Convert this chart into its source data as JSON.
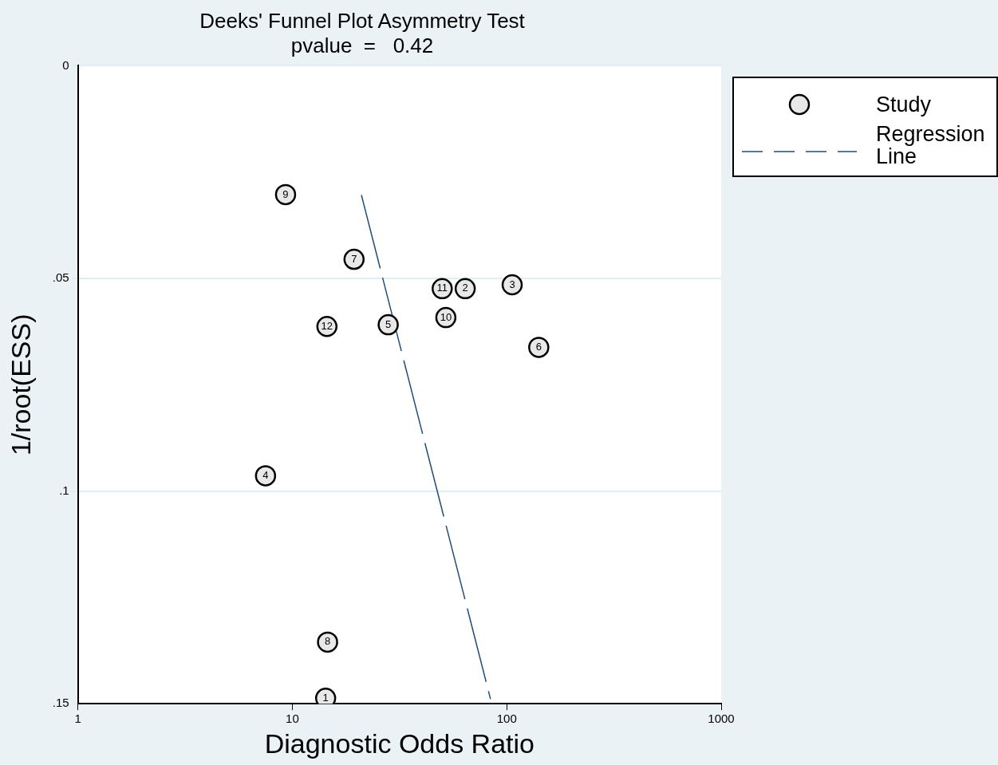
{
  "chart_data": {
    "type": "scatter",
    "title": "Deeks' Funnel Plot Asymmetry Test",
    "subtitle": "pvalue  =   0.42",
    "xlabel": "Diagnostic Odds Ratio",
    "ylabel": "1/root(ESS)",
    "log": "x",
    "xlim": [
      1,
      1000
    ],
    "xticks": [
      1,
      10,
      100,
      1000
    ],
    "ylim": [
      0.15,
      0
    ],
    "yticks": [
      {
        "value": 0,
        "label": "0"
      },
      {
        "value": 0.05,
        "label": ".05"
      },
      {
        "value": 0.1,
        "label": ".1"
      },
      {
        "value": 0.15,
        "label": ".15"
      }
    ],
    "grid": "y",
    "legend": "top right",
    "series": [
      {
        "name": "Study",
        "marker": "circle",
        "color": "#e8e8e8",
        "x": [
          14.3,
          64,
          106,
          7.5,
          28,
          141,
          19.4,
          14.6,
          9.3,
          52,
          50,
          14.5
        ],
        "values": [
          0.1487,
          0.0524,
          0.0515,
          0.0964,
          0.0609,
          0.0662,
          0.0455,
          0.1355,
          0.0303,
          0.0592,
          0.0524,
          0.0613
        ]
      },
      {
        "name": "Regression Line",
        "type": "line",
        "marker": "none",
        "color": "#1f4e79",
        "line_style": "dashed",
        "x": [
          21,
          84
        ],
        "values": [
          0.0304,
          0.1489
        ]
      }
    ],
    "annotations": [
      {
        "text": "1",
        "x": 14.3,
        "y": 0.1487
      },
      {
        "text": "2",
        "x": 64,
        "y": 0.0524
      },
      {
        "text": "3",
        "x": 106,
        "y": 0.0515
      },
      {
        "text": "4",
        "x": 7.5,
        "y": 0.0964
      },
      {
        "text": "5",
        "x": 28,
        "y": 0.0609
      },
      {
        "text": "6",
        "x": 141,
        "y": 0.0662
      },
      {
        "text": "7",
        "x": 19.4,
        "y": 0.0455
      },
      {
        "text": "8",
        "x": 14.6,
        "y": 0.1355
      },
      {
        "text": "9",
        "x": 9.3,
        "y": 0.0303
      },
      {
        "text": "10",
        "x": 52,
        "y": 0.0592
      },
      {
        "text": "11",
        "x": 50,
        "y": 0.0524
      },
      {
        "text": "12",
        "x": 14.5,
        "y": 0.0613
      }
    ]
  }
}
